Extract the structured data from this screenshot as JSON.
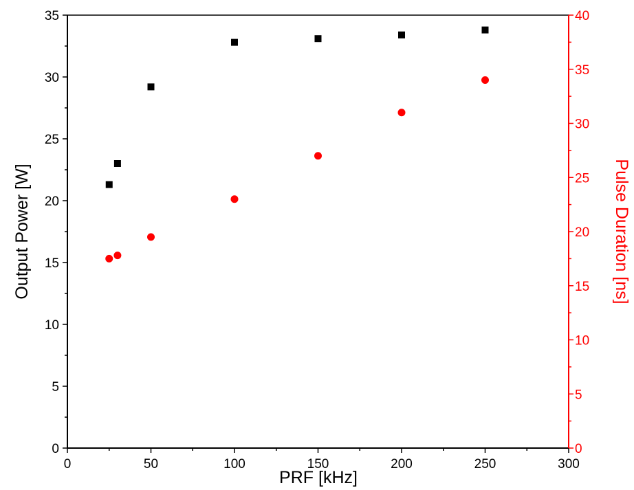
{
  "chart_data": {
    "type": "scatter",
    "xlabel": "PRF [kHz]",
    "ylabel_left": "Output Power [W]",
    "ylabel_right": "Pulse Duration [ns]",
    "xlim": [
      0,
      300
    ],
    "ylim_left": [
      0,
      35
    ],
    "ylim_right": [
      0,
      40
    ],
    "x_ticks": [
      "0",
      "50",
      "100",
      "150",
      "200",
      "250",
      "300"
    ],
    "y_left_ticks": [
      "0",
      "5",
      "10",
      "15",
      "20",
      "25",
      "30",
      "35"
    ],
    "y_right_ticks": [
      "0",
      "5",
      "10",
      "15",
      "20",
      "25",
      "30",
      "35",
      "40"
    ],
    "grid": false,
    "legend": "none",
    "series": [
      {
        "axis": "left",
        "marker": "square",
        "color": "#000000",
        "x": [
          25,
          30,
          50,
          100,
          150,
          200,
          250
        ],
        "y": [
          21.3,
          23.0,
          29.2,
          32.8,
          33.1,
          33.4,
          33.8
        ]
      },
      {
        "axis": "right",
        "marker": "circle",
        "color": "#ff0000",
        "x": [
          25,
          30,
          50,
          100,
          150,
          200,
          250
        ],
        "y": [
          17.5,
          17.8,
          19.5,
          23.0,
          27.0,
          31.0,
          34.0
        ]
      }
    ]
  }
}
